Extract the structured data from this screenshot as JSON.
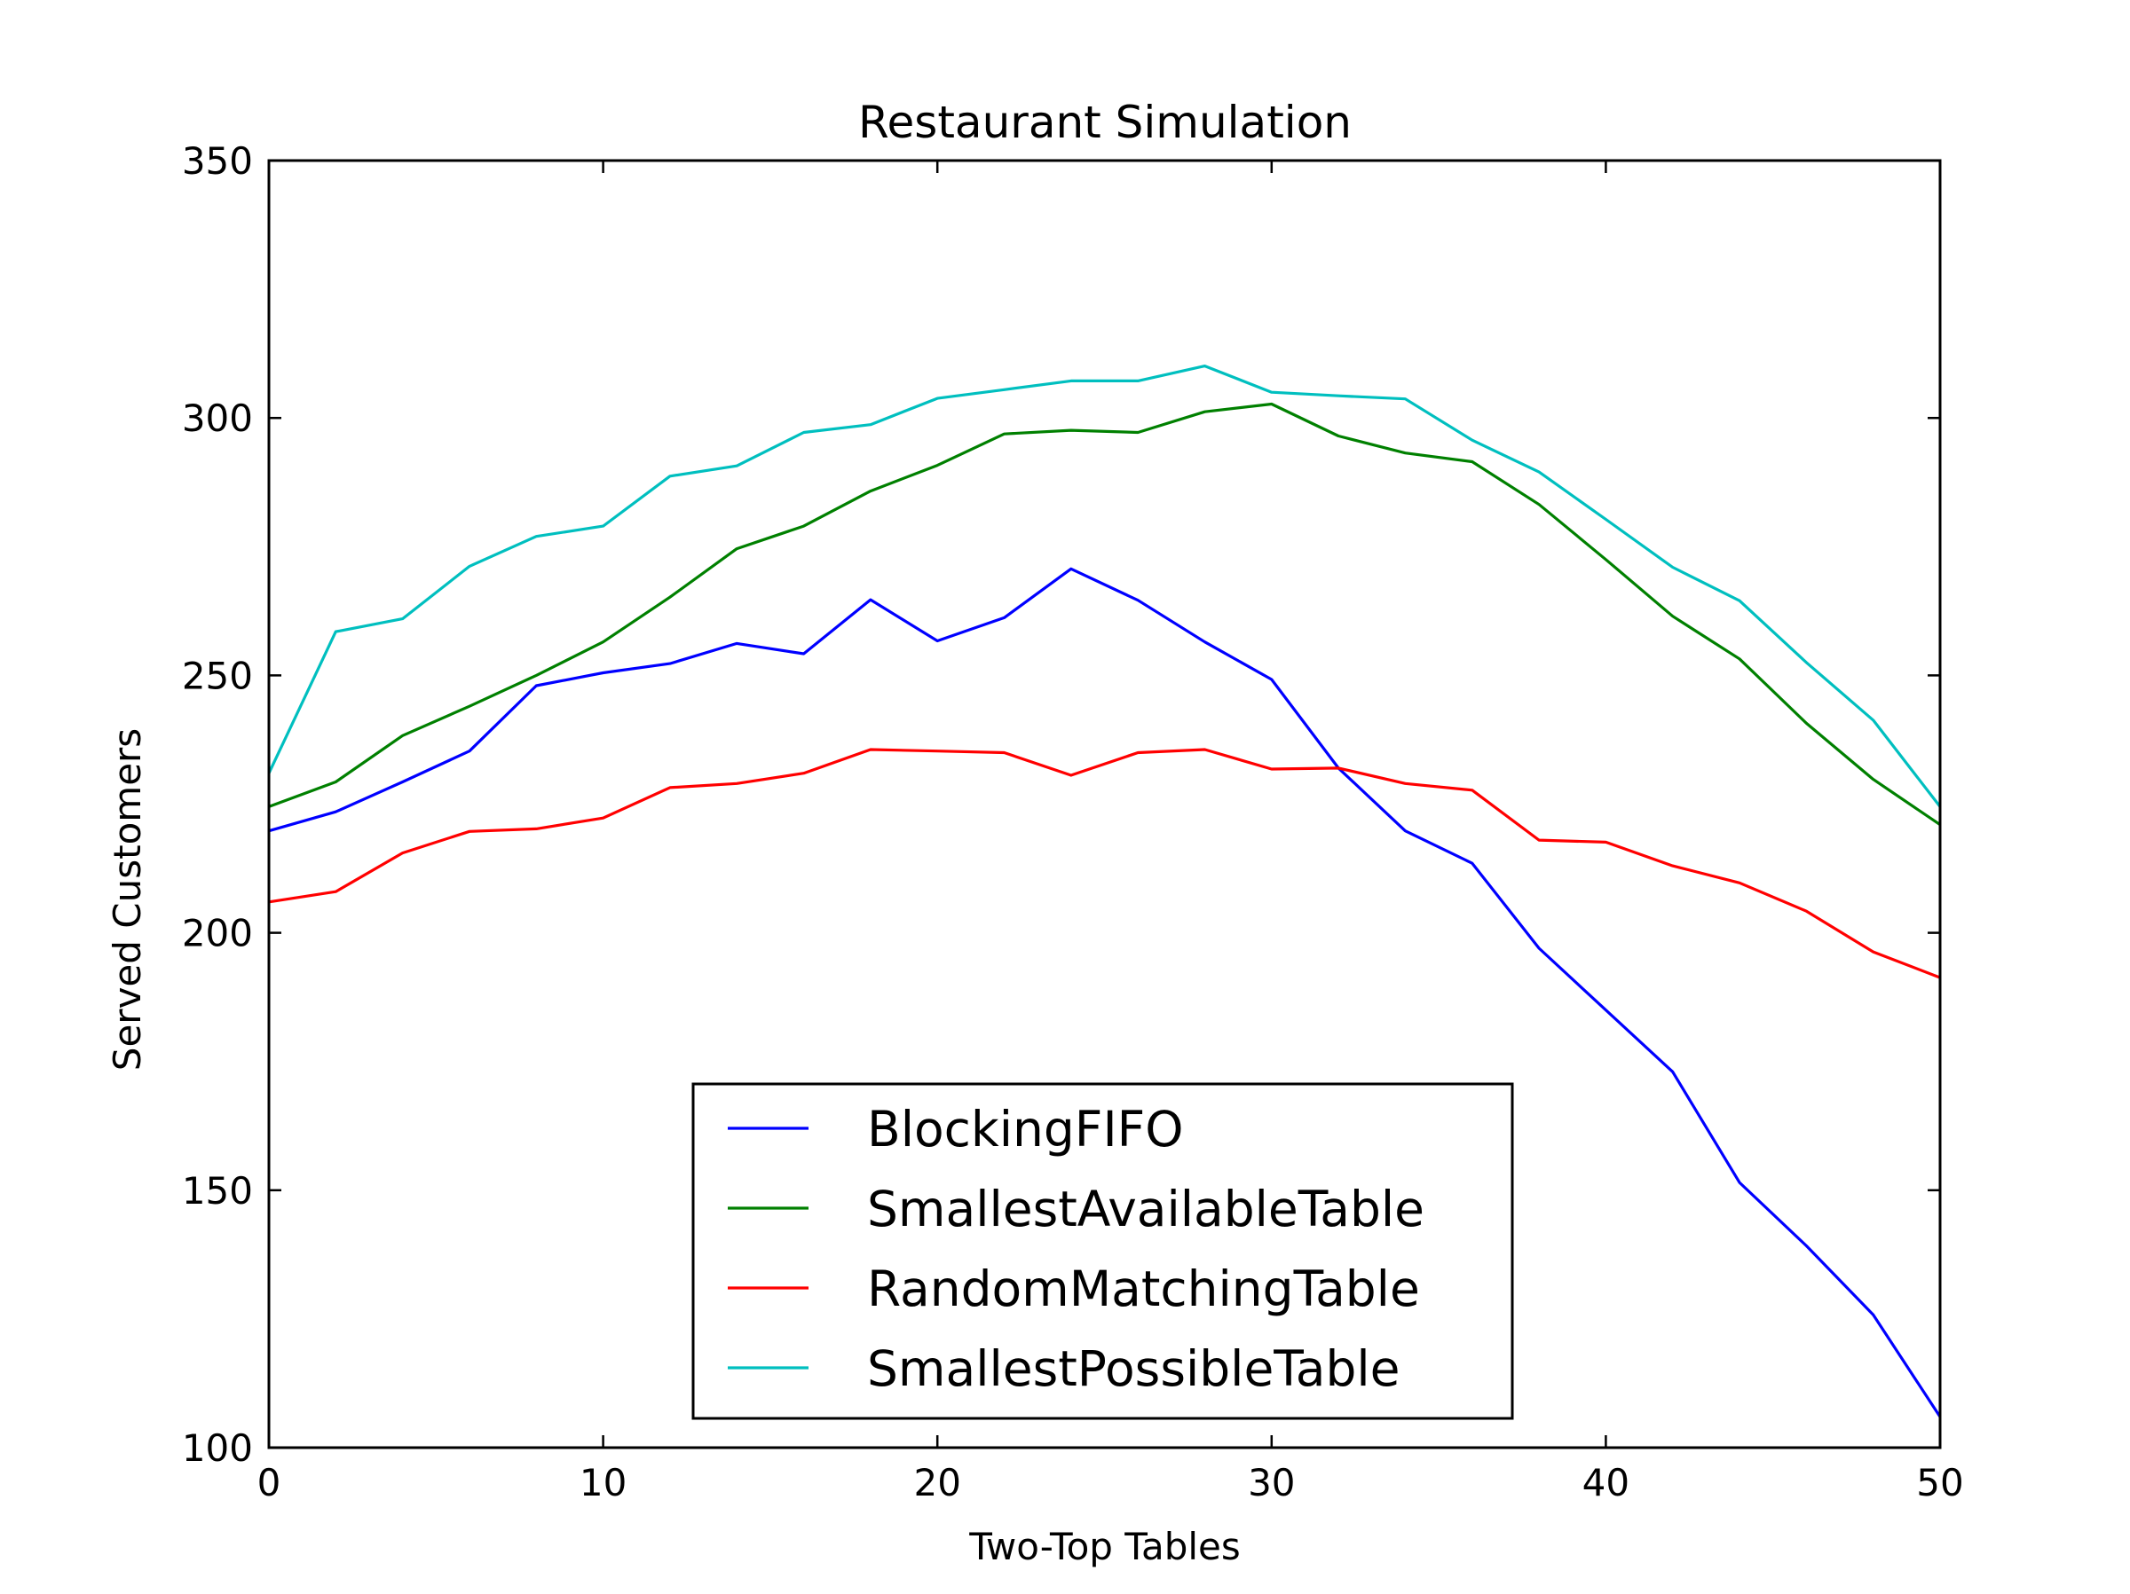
{
  "chart_data": {
    "type": "line",
    "title": "Restaurant Simulation",
    "xlabel": "Two-Top Tables",
    "ylabel": "Served Customers",
    "xlim": [
      0,
      50
    ],
    "ylim": [
      100,
      350
    ],
    "xticks": [
      0,
      10,
      20,
      30,
      40,
      50
    ],
    "yticks": [
      100,
      150,
      200,
      250,
      300,
      350
    ],
    "grid": false,
    "legend_position": "lower center",
    "x": [
      0,
      2,
      4,
      6,
      8,
      10,
      12,
      14,
      16,
      18,
      20,
      22,
      24,
      26,
      28,
      30,
      32,
      34,
      36,
      38,
      40,
      42,
      44,
      46,
      48,
      50
    ],
    "series": [
      {
        "name": "BlockingFIFO",
        "color": "#0000ff",
        "values": [
          219.8,
          223.5,
          229.3,
          235.3,
          248,
          250.5,
          252.3,
          256.2,
          254.2,
          264.7,
          256.7,
          261.2,
          270.7,
          264.6,
          256.5,
          249.2,
          232,
          219.8,
          213.5,
          197,
          185,
          173,
          151.5,
          139.2,
          125.8,
          106
        ]
      },
      {
        "name": "SmallestAvailableTable",
        "color": "#008000",
        "values": [
          224.5,
          229.3,
          238.3,
          244,
          250,
          256.5,
          265.2,
          274.6,
          279,
          285.8,
          290.8,
          296.9,
          297.6,
          297.2,
          301.2,
          302.7,
          296.5,
          293.2,
          291.5,
          283.2,
          272.5,
          261.5,
          253.2,
          240.7,
          229.8,
          221
        ]
      },
      {
        "name": "RandomMatchingTable",
        "color": "#ff0000",
        "values": [
          206,
          208,
          215.5,
          219.7,
          220.2,
          222.3,
          228.2,
          229,
          231,
          235.6,
          235.3,
          235,
          230.6,
          235,
          235.6,
          231.8,
          232,
          229,
          227.7,
          218,
          217.6,
          213,
          209.7,
          204.2,
          196.3,
          191.3
        ]
      },
      {
        "name": "SmallestPossibleTable",
        "color": "#00bfbf",
        "values": [
          231,
          258.5,
          261,
          271.2,
          277,
          279,
          288.7,
          290.7,
          297.2,
          298.7,
          303.8,
          305.5,
          307.2,
          307.2,
          310.1,
          305,
          304.3,
          303.7,
          295.7,
          289.5,
          280.3,
          271,
          264.5,
          252.5,
          241.3,
          224.5
        ]
      }
    ]
  }
}
